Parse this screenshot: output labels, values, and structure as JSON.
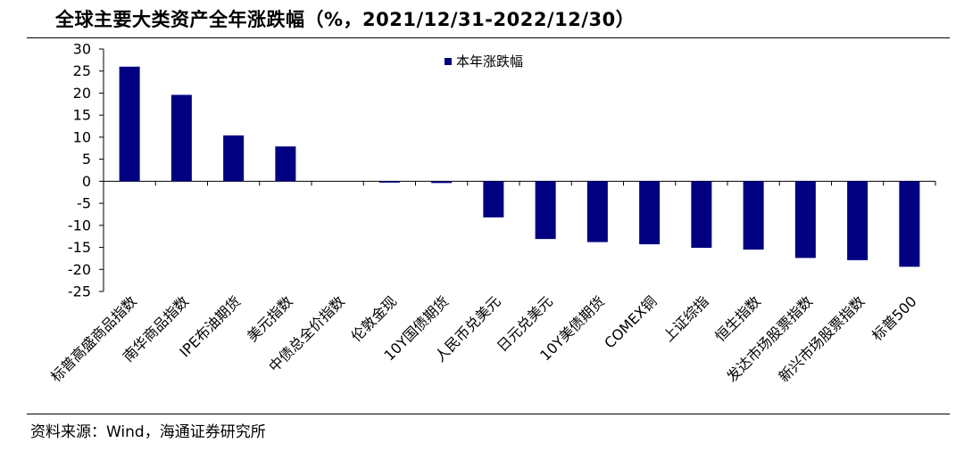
{
  "header": {
    "title": "全球主要大类资产全年涨跌幅（%，2021/12/31-2022/12/30）"
  },
  "footer": {
    "source": "资料来源：Wind，海通证券研究所"
  },
  "chart_data": {
    "type": "bar",
    "title": "全球主要大类资产全年涨跌幅（%，2021/12/31-2022/12/30）",
    "categories": [
      "标普高盛商品指数",
      "南华商品指数",
      "IPE布油期货",
      "美元指数",
      "中债总全价指数",
      "伦敦金现",
      "10Y国债期货",
      "人民币兑美元",
      "日元兑美元",
      "10Y美债期货",
      "COMEX铜",
      "上证综指",
      "恒生指数",
      "发达市场股票指数",
      "新兴市场股票指数",
      "标普500"
    ],
    "series": [
      {
        "name": "本年涨跌幅",
        "values": [
          26.0,
          19.6,
          10.4,
          7.9,
          0.0,
          -0.3,
          -0.4,
          -8.2,
          -13.1,
          -13.8,
          -14.3,
          -15.1,
          -15.5,
          -17.4,
          -17.9,
          -19.4
        ],
        "color": "#000080"
      }
    ],
    "yticks": [
      30,
      25,
      20,
      15,
      10,
      5,
      0,
      -5,
      -10,
      -15,
      -20,
      -25
    ],
    "ylim": [
      -25,
      30
    ],
    "xlabel": "",
    "ylabel": "",
    "legend_position": "top-center",
    "grid": false
  }
}
